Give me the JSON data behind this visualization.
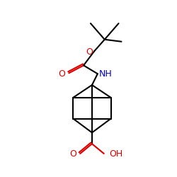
{
  "background": "#ffffff",
  "bond_color": "#000000",
  "O_color": "#dd0000",
  "N_color": "#0000cc",
  "line_width": 1.5,
  "fig_size": [
    2.5,
    2.5
  ],
  "dpi": 100,
  "xlim": [
    0,
    250
  ],
  "ylim": [
    0,
    250
  ]
}
